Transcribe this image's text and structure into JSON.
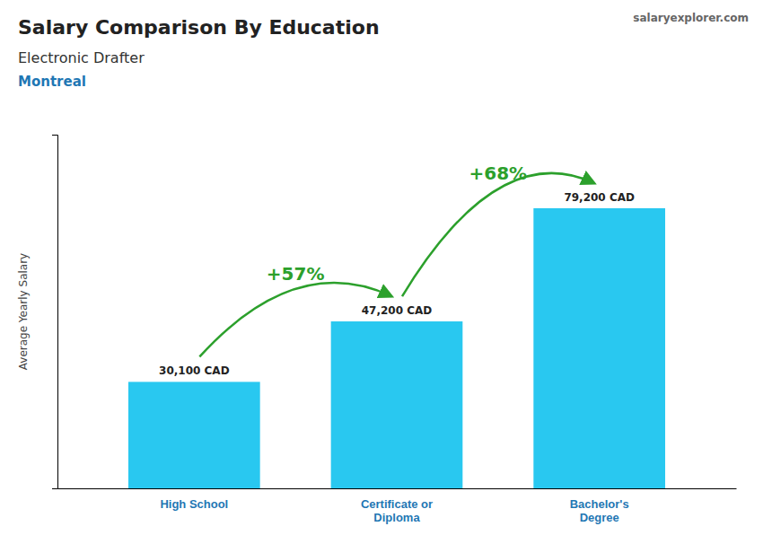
{
  "chart_data": {
    "type": "bar",
    "title": "Salary Comparison By Education",
    "subtitle": [
      "Electronic Drafter",
      "Montreal"
    ],
    "source": "salaryexplorer.com",
    "ylabel": "Average Yearly Salary",
    "categories": [
      "High School",
      "Certificate or\nDiploma",
      "Bachelor's\nDegree"
    ],
    "values": [
      30100,
      47200,
      79200
    ],
    "value_labels": [
      "30,100 CAD",
      "47,200 CAD",
      "79,200 CAD"
    ],
    "data_labels": true,
    "annotations": [
      "+57%",
      "+68%"
    ],
    "color": "#29c8f0",
    "ylim": [
      0,
      100000
    ],
    "grid": false,
    "tick_labels": "x"
  }
}
